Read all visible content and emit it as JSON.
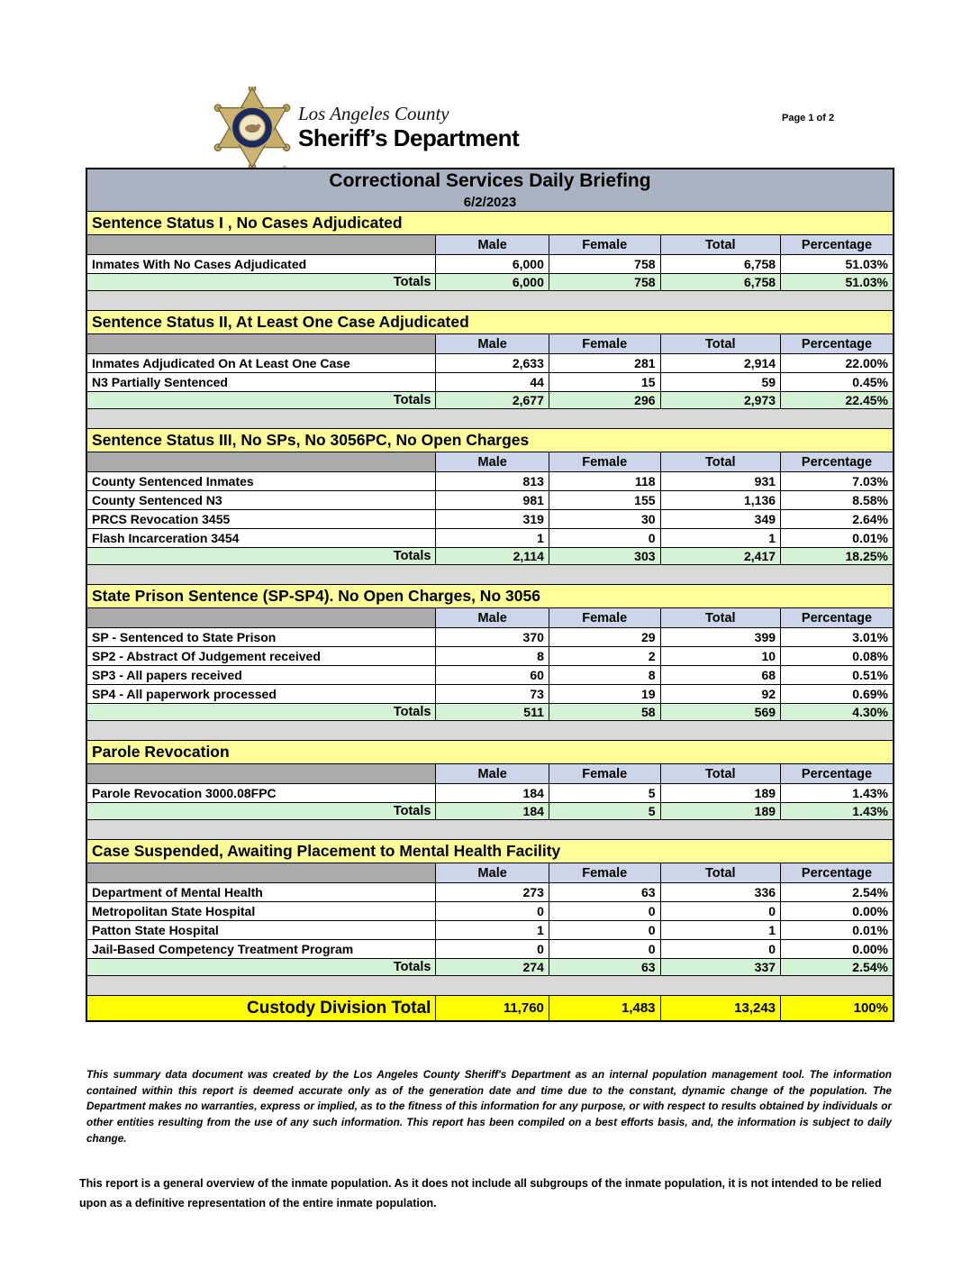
{
  "page": {
    "page_number": "Page 1 of 2",
    "logo": {
      "badge_icon": "sheriff-star-badge",
      "county": "Los Angeles County",
      "department": "Sheriff’s Department"
    }
  },
  "report": {
    "title": "Correctional Services Daily Briefing",
    "date": "6/2/2023"
  },
  "table": {
    "column_headers": [
      "Male",
      "Female",
      "Total",
      "Percentage"
    ],
    "totals_label": "Totals",
    "sections": [
      {
        "title": "Sentence Status I , No Cases Adjudicated",
        "rows": [
          {
            "label": "Inmates With No Cases Adjudicated",
            "male": "6,000",
            "female": "758",
            "total": "6,758",
            "percentage": "51.03%"
          }
        ],
        "totals": {
          "male": "6,000",
          "female": "758",
          "total": "6,758",
          "percentage": "51.03%"
        }
      },
      {
        "title": "Sentence Status II, At Least One Case Adjudicated",
        "rows": [
          {
            "label": "Inmates Adjudicated On At Least One Case",
            "male": "2,633",
            "female": "281",
            "total": "2,914",
            "percentage": "22.00%"
          },
          {
            "label": "N3 Partially Sentenced",
            "male": "44",
            "female": "15",
            "total": "59",
            "percentage": "0.45%"
          }
        ],
        "totals": {
          "male": "2,677",
          "female": "296",
          "total": "2,973",
          "percentage": "22.45%"
        }
      },
      {
        "title": "Sentence Status III, No SPs, No 3056PC, No Open Charges",
        "rows": [
          {
            "label": "County Sentenced Inmates",
            "male": "813",
            "female": "118",
            "total": "931",
            "percentage": "7.03%"
          },
          {
            "label": "County Sentenced N3",
            "male": "981",
            "female": "155",
            "total": "1,136",
            "percentage": "8.58%"
          },
          {
            "label": "PRCS Revocation 3455",
            "male": "319",
            "female": "30",
            "total": "349",
            "percentage": "2.64%"
          },
          {
            "label": "Flash Incarceration 3454",
            "male": "1",
            "female": "0",
            "total": "1",
            "percentage": "0.01%"
          }
        ],
        "totals": {
          "male": "2,114",
          "female": "303",
          "total": "2,417",
          "percentage": "18.25%"
        }
      },
      {
        "title": "State Prison Sentence (SP-SP4). No Open Charges, No 3056",
        "rows": [
          {
            "label": "SP - Sentenced to State Prison",
            "male": "370",
            "female": "29",
            "total": "399",
            "percentage": "3.01%"
          },
          {
            "label": "SP2 - Abstract Of Judgement received",
            "male": "8",
            "female": "2",
            "total": "10",
            "percentage": "0.08%"
          },
          {
            "label": "SP3 - All papers received",
            "male": "60",
            "female": "8",
            "total": "68",
            "percentage": "0.51%"
          },
          {
            "label": "SP4 - All paperwork processed",
            "male": "73",
            "female": "19",
            "total": "92",
            "percentage": "0.69%"
          }
        ],
        "totals": {
          "male": "511",
          "female": "58",
          "total": "569",
          "percentage": "4.30%"
        }
      },
      {
        "title": "Parole Revocation",
        "rows": [
          {
            "label": "Parole Revocation 3000.08FPC",
            "male": "184",
            "female": "5",
            "total": "189",
            "percentage": "1.43%"
          }
        ],
        "totals": {
          "male": "184",
          "female": "5",
          "total": "189",
          "percentage": "1.43%"
        }
      },
      {
        "title": "Case Suspended, Awaiting Placement to Mental Health Facility",
        "rows": [
          {
            "label": "Department of Mental Health",
            "male": "273",
            "female": "63",
            "total": "336",
            "percentage": "2.54%"
          },
          {
            "label": "Metropolitan State Hospital",
            "male": "0",
            "female": "0",
            "total": "0",
            "percentage": "0.00%"
          },
          {
            "label": "Patton State Hospital",
            "male": "1",
            "female": "0",
            "total": "1",
            "percentage": "0.01%"
          },
          {
            "label": "Jail-Based Competency Treatment Program",
            "male": "0",
            "female": "0",
            "total": "0",
            "percentage": "0.00%"
          }
        ],
        "totals": {
          "male": "274",
          "female": "63",
          "total": "337",
          "percentage": "2.54%"
        }
      }
    ],
    "grand_total": {
      "label": "Custody Division Total",
      "male": "11,760",
      "female": "1,483",
      "total": "13,243",
      "percentage": "100%"
    }
  },
  "footer": {
    "disclaimer": "This summary data document was created by the Los Angeles County Sheriff's Department as an internal population management tool.  The information contained within this report is deemed accurate only as of the generation date and time due to the constant, dynamic change of the population.  The Department makes no warranties, express or implied, as to the fitness of this information for any purpose, or with respect to results obtained by individuals or other entities resulting from the use of any such information.  This report has been compiled on a best efforts basis, and, the information is subject to daily change.",
    "note": "This report is a general overview of the inmate population.  As it does not include all subgroups of the inmate population, it is not intended to be relied upon as a definitive representation of the entire inmate population."
  },
  "colors": {
    "title_bar": "#a9b3c2",
    "section_header_yellow": "#ffff99",
    "column_header_lavender": "#cdd5e8",
    "totals_green": "#d6f2d6",
    "grand_total_yellow": "#ffff00",
    "gap_gray": "#d9d9d9",
    "corner_gray": "#ababab"
  }
}
